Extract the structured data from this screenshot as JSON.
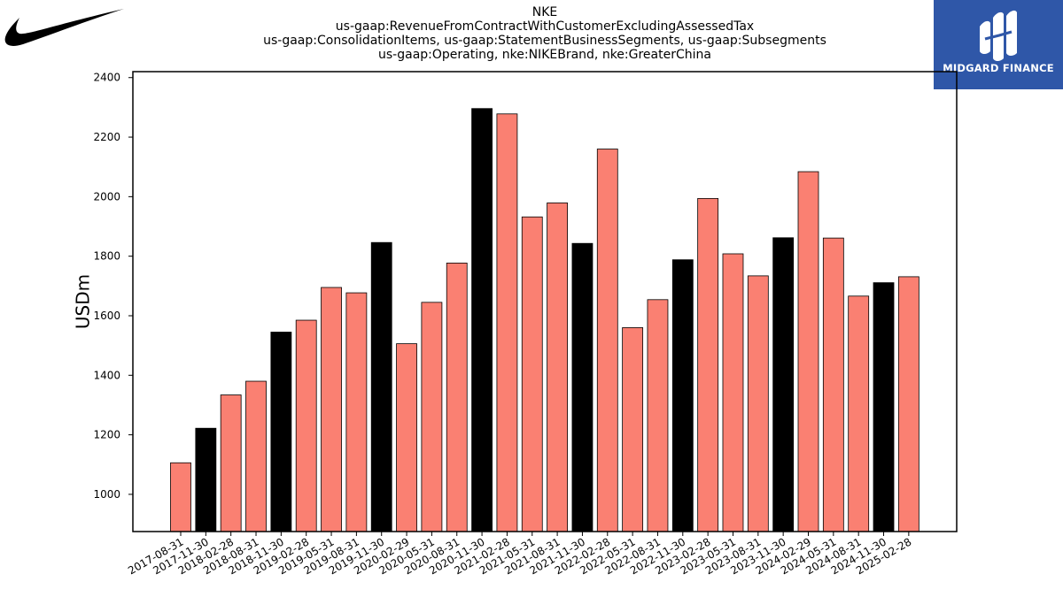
{
  "titles": {
    "line1": "NKE",
    "line2": "us-gaap:RevenueFromContractWithCustomerExcludingAssessedTax",
    "line3": "us-gaap:ConsolidationItems, us-gaap:StatementBusinessSegments, us-gaap:Subsegments",
    "line4": "us-gaap:Operating, nke:NIKEBrand, nke:GreaterChina"
  },
  "logos": {
    "left": "swoosh-logo",
    "right_text": "MIDGARD FINANCE"
  },
  "colors": {
    "salmon": "#fa8072",
    "black": "#000000",
    "brand_blue": "#2f57a8"
  },
  "chart_data": {
    "type": "bar",
    "ylabel": "USDm",
    "xlabel": "",
    "ylim": [
      875,
      2420
    ],
    "yticks": [
      1000,
      1200,
      1400,
      1600,
      1800,
      2000,
      2200,
      2400
    ],
    "grid": false,
    "categories": [
      "2017-08-31",
      "2017-11-30",
      "2018-02-28",
      "2018-08-31",
      "2018-11-30",
      "2019-02-28",
      "2019-05-31",
      "2019-08-31",
      "2019-11-30",
      "2020-02-29",
      "2020-05-31",
      "2020-08-31",
      "2020-11-30",
      "2021-02-28",
      "2021-05-31",
      "2021-08-31",
      "2021-11-30",
      "2022-02-28",
      "2022-05-31",
      "2022-08-31",
      "2022-11-30",
      "2023-02-28",
      "2023-05-31",
      "2023-08-31",
      "2023-11-30",
      "2024-02-29",
      "2024-05-31",
      "2024-08-31",
      "2024-11-30",
      "2025-02-28"
    ],
    "values": [
      1106,
      1222,
      1334,
      1380,
      1545,
      1585,
      1695,
      1677,
      1846,
      1506,
      1645,
      1777,
      2296,
      2278,
      1932,
      1979,
      1843,
      2160,
      1560,
      1654,
      1788,
      1994,
      1808,
      1734,
      1862,
      2084,
      1861,
      1666,
      1711,
      1731
    ],
    "bar_colors": [
      "#fa8072",
      "#000000",
      "#fa8072",
      "#fa8072",
      "#000000",
      "#fa8072",
      "#fa8072",
      "#fa8072",
      "#000000",
      "#fa8072",
      "#fa8072",
      "#fa8072",
      "#000000",
      "#fa8072",
      "#fa8072",
      "#fa8072",
      "#000000",
      "#fa8072",
      "#fa8072",
      "#fa8072",
      "#000000",
      "#fa8072",
      "#fa8072",
      "#fa8072",
      "#000000",
      "#fa8072",
      "#fa8072",
      "#fa8072",
      "#000000",
      "#fa8072"
    ]
  }
}
